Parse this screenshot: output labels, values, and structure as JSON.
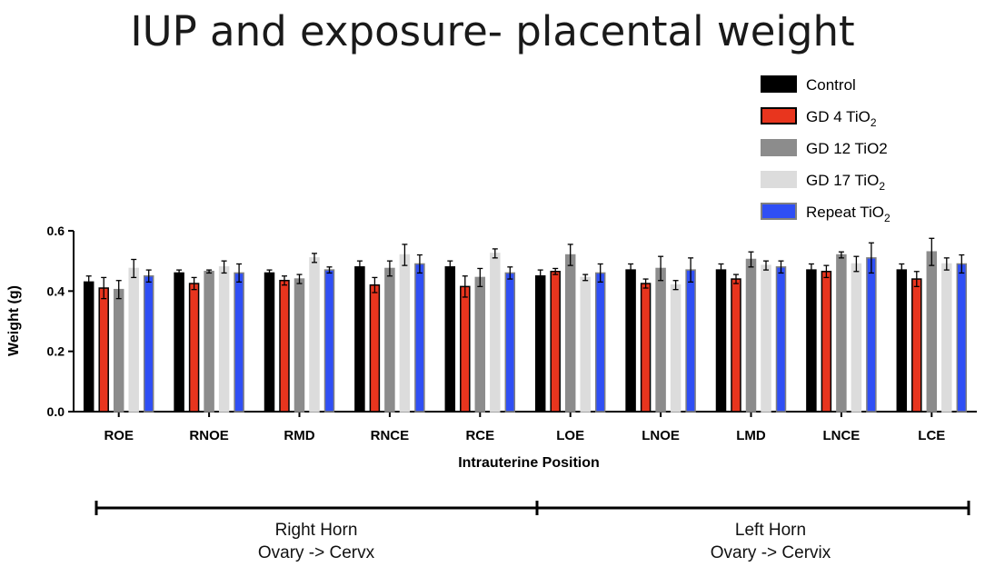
{
  "chart_data": {
    "type": "bar",
    "title": "IUP and exposure- placental weight",
    "xlabel": "Intrauterine Position",
    "ylabel": "Weight (g)",
    "ylim": [
      0,
      0.6
    ],
    "yticks": [
      "0.0",
      "0.2",
      "0.4",
      "0.6"
    ],
    "categories": [
      "ROE",
      "RNOE",
      "RMD",
      "RNCE",
      "RCE",
      "LOE",
      "LNOE",
      "LMD",
      "LNCE",
      "LCE"
    ],
    "series": [
      {
        "name": "Control",
        "label_main": "Control",
        "label_sub": "",
        "color": "#000000",
        "edge": "#000000",
        "values": [
          0.43,
          0.46,
          0.46,
          0.48,
          0.48,
          0.45,
          0.47,
          0.47,
          0.47,
          0.47
        ],
        "errors": [
          0.02,
          0.01,
          0.01,
          0.02,
          0.02,
          0.02,
          0.02,
          0.02,
          0.02,
          0.02
        ]
      },
      {
        "name": "GD 4 TiO2",
        "label_main": "GD 4 TiO",
        "label_sub": "2",
        "color": "#e8351e",
        "edge": "#000000",
        "values": [
          0.41,
          0.425,
          0.435,
          0.42,
          0.415,
          0.465,
          0.425,
          0.44,
          0.465,
          0.44
        ],
        "errors": [
          0.035,
          0.02,
          0.015,
          0.025,
          0.035,
          0.01,
          0.015,
          0.015,
          0.02,
          0.025
        ]
      },
      {
        "name": "GD 12 TiO2",
        "label_main": "GD 12 TiO2",
        "label_sub": "",
        "color": "#8c8c8c",
        "edge": "#8c8c8c",
        "values": [
          0.405,
          0.465,
          0.44,
          0.475,
          0.445,
          0.52,
          0.475,
          0.505,
          0.52,
          0.53
        ],
        "errors": [
          0.03,
          0.005,
          0.015,
          0.025,
          0.03,
          0.035,
          0.04,
          0.025,
          0.01,
          0.045
        ]
      },
      {
        "name": "GD 17 TiO2",
        "label_main": "GD 17 TiO",
        "label_sub": "2",
        "color": "#dcdcdc",
        "edge": "#dcdcdc",
        "values": [
          0.475,
          0.48,
          0.51,
          0.52,
          0.525,
          0.445,
          0.42,
          0.485,
          0.49,
          0.49
        ],
        "errors": [
          0.03,
          0.02,
          0.015,
          0.035,
          0.015,
          0.01,
          0.015,
          0.015,
          0.025,
          0.02
        ]
      },
      {
        "name": "Repeat TiO2",
        "label_main": "Repeat TiO",
        "label_sub": "2",
        "color": "#2f4ff5",
        "edge": "#808080",
        "values": [
          0.45,
          0.46,
          0.47,
          0.49,
          0.46,
          0.46,
          0.47,
          0.48,
          0.51,
          0.49
        ],
        "errors": [
          0.02,
          0.03,
          0.01,
          0.03,
          0.02,
          0.03,
          0.04,
          0.02,
          0.05,
          0.03
        ]
      }
    ],
    "horns": [
      {
        "line1": "Right Horn",
        "line2": "Ovary -> Cervx"
      },
      {
        "line1": "Left Horn",
        "line2": "Ovary -> Cervix"
      }
    ]
  }
}
